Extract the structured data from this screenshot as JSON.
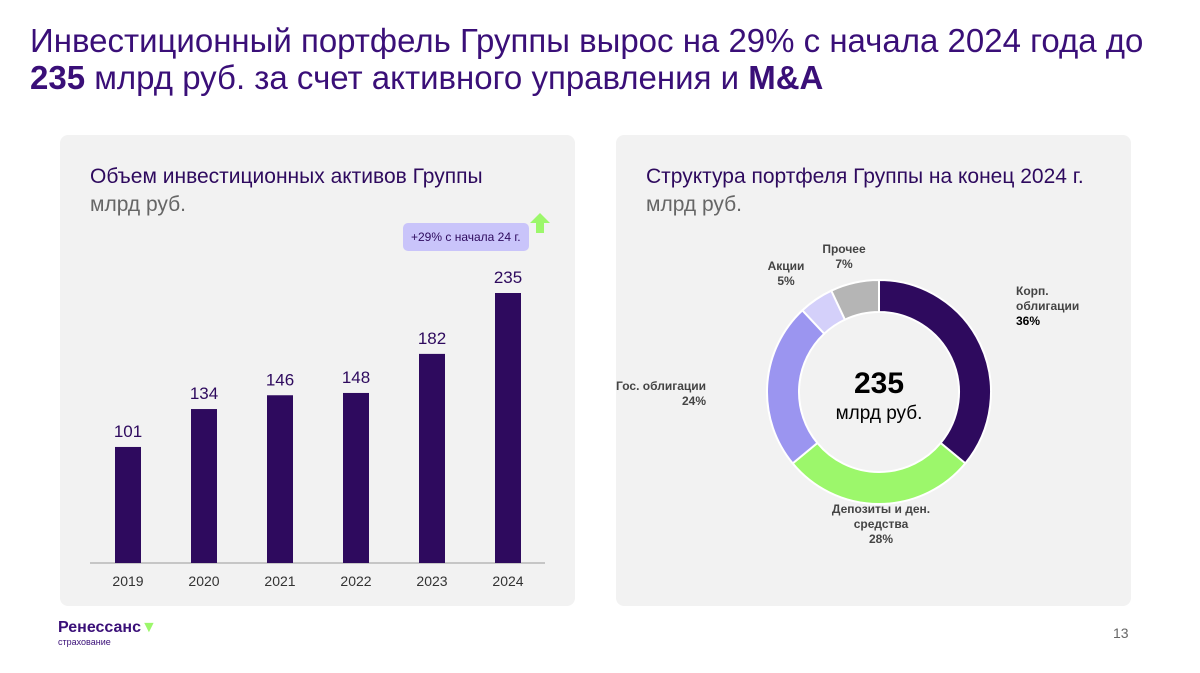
{
  "title": {
    "part1": "Инвестиционный портфель Группы вырос на 29% с начала 2024 года до ",
    "bold1": "235",
    "part2": " млрд руб. за счет активного управления и ",
    "bold2": "M&A"
  },
  "left_panel": {
    "title": "Объем инвестиционных активов Группы",
    "unit": "млрд руб.",
    "badge": "+29% с начала 24 г."
  },
  "right_panel": {
    "title": "Структура портфеля Группы на конец 2024 г.",
    "unit": "млрд руб.",
    "center_value": "235",
    "center_unit": "млрд руб."
  },
  "chart_data": [
    {
      "type": "bar",
      "categories": [
        "2019",
        "2020",
        "2021",
        "2022",
        "2023",
        "2024"
      ],
      "values": [
        101,
        134,
        146,
        148,
        182,
        235
      ],
      "color": "#2e0a5e"
    },
    {
      "type": "pie",
      "donut": true,
      "slices": [
        {
          "label": "Корп. облигации",
          "value": 36,
          "color": "#2e0a5e"
        },
        {
          "label": "Депозиты и ден. средства",
          "value": 28,
          "color": "#9cf76b"
        },
        {
          "label": "Гос. облигации",
          "value": 24,
          "color": "#9b95f0"
        },
        {
          "label": "Акции",
          "value": 5,
          "color": "#d4d0fa"
        },
        {
          "label": "Прочее",
          "value": 7,
          "color": "#b5b5b5"
        }
      ]
    }
  ],
  "footer": {
    "logo_name": "Ренессанс",
    "logo_sub": "страхование",
    "page_number": "13"
  }
}
